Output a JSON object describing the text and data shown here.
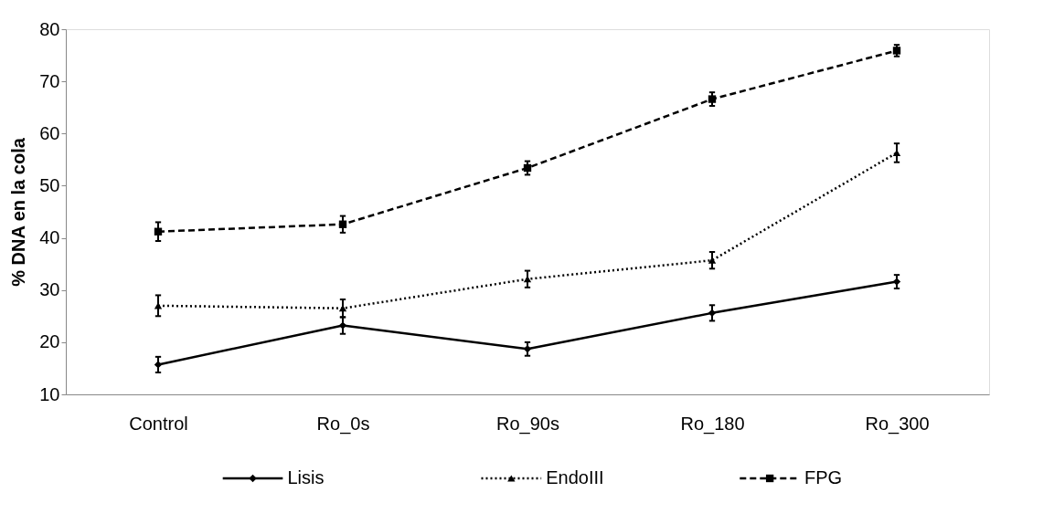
{
  "chart_data": {
    "type": "line",
    "ylabel": "% DNA en la cola",
    "categories": [
      "Control",
      "Ro_0s",
      "Ro_90s",
      "Ro_180",
      "Ro_300"
    ],
    "ylim": [
      10,
      80
    ],
    "yticks": [
      10,
      20,
      30,
      40,
      50,
      60,
      70,
      80
    ],
    "grid": false,
    "legend": "bottom",
    "series": [
      {
        "name": "Lisis",
        "color": "#000000",
        "marker": "diamond",
        "line_style": "solid",
        "values": [
          15.7,
          23.2,
          18.7,
          25.6,
          31.6
        ],
        "errors": [
          1.5,
          1.6,
          1.3,
          1.5,
          1.3
        ]
      },
      {
        "name": "EndoIII",
        "color": "#000000",
        "marker": "triangle",
        "line_style": "dotted",
        "values": [
          27.0,
          26.5,
          32.1,
          35.7,
          56.3
        ],
        "errors": [
          2.0,
          1.7,
          1.6,
          1.6,
          1.8
        ]
      },
      {
        "name": "FPG",
        "color": "#000000",
        "marker": "square",
        "line_style": "dashed",
        "values": [
          41.2,
          42.6,
          53.4,
          66.6,
          75.9
        ],
        "errors": [
          1.8,
          1.6,
          1.3,
          1.3,
          1.1
        ]
      }
    ]
  }
}
